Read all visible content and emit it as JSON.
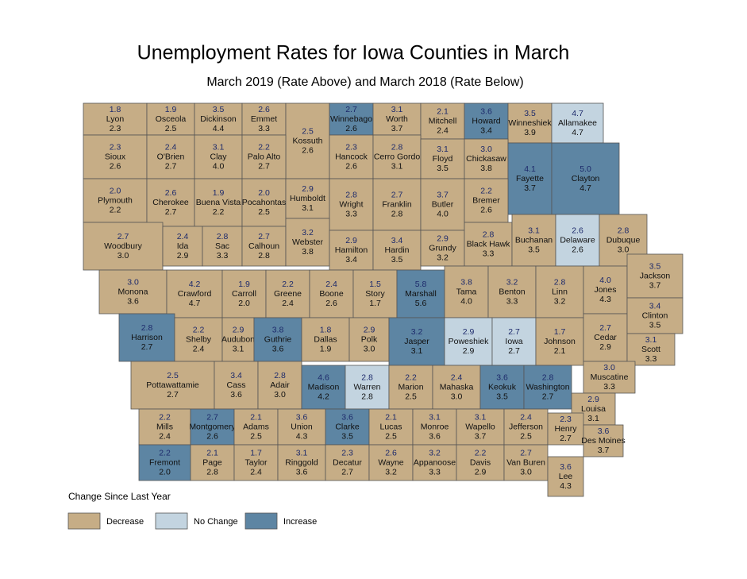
{
  "title": "Unemployment Rates for Iowa Counties in March",
  "subtitle": "March 2019 (Rate Above) and March 2018 (Rate Below)",
  "legend": {
    "title": "Change Since Last Year",
    "items": [
      {
        "label": "Decrease",
        "color": "#c6ad86"
      },
      {
        "label": "No Change",
        "color": "#c3d4e0"
      },
      {
        "label": "Increase",
        "color": "#5d85a3"
      }
    ]
  },
  "counties": [
    {
      "name": "Lyon",
      "rate_2019": "1.8",
      "rate_2018": "2.3",
      "color": "#c6ad86"
    },
    {
      "name": "Osceola",
      "rate_2019": "1.9",
      "rate_2018": "2.5",
      "color": "#c6ad86"
    },
    {
      "name": "Dickinson",
      "rate_2019": "3.5",
      "rate_2018": "4.4",
      "color": "#c6ad86"
    },
    {
      "name": "Emmet",
      "rate_2019": "2.6",
      "rate_2018": "3.3",
      "color": "#c6ad86"
    },
    {
      "name": "Kossuth",
      "rate_2019": "2.5",
      "rate_2018": "2.6",
      "color": "#c6ad86"
    },
    {
      "name": "Winnebago",
      "rate_2019": "2.7",
      "rate_2018": "2.6",
      "color": "#5d85a3"
    },
    {
      "name": "Worth",
      "rate_2019": "3.1",
      "rate_2018": "3.7",
      "color": "#c6ad86"
    },
    {
      "name": "Mitchell",
      "rate_2019": "2.1",
      "rate_2018": "2.4",
      "color": "#c6ad86"
    },
    {
      "name": "Howard",
      "rate_2019": "3.6",
      "rate_2018": "3.4",
      "color": "#5d85a3"
    },
    {
      "name": "Winneshiek",
      "rate_2019": "3.5",
      "rate_2018": "3.9",
      "color": "#c6ad86"
    },
    {
      "name": "Allamakee",
      "rate_2019": "4.7",
      "rate_2018": "4.7",
      "color": "#c3d4e0"
    },
    {
      "name": "Sioux",
      "rate_2019": "2.3",
      "rate_2018": "2.6",
      "color": "#c6ad86"
    },
    {
      "name": "O'Brien",
      "rate_2019": "2.4",
      "rate_2018": "2.7",
      "color": "#c6ad86"
    },
    {
      "name": "Clay",
      "rate_2019": "3.1",
      "rate_2018": "4.0",
      "color": "#c6ad86"
    },
    {
      "name": "Palo Alto",
      "rate_2019": "2.2",
      "rate_2018": "2.7",
      "color": "#c6ad86"
    },
    {
      "name": "Hancock",
      "rate_2019": "2.3",
      "rate_2018": "2.6",
      "color": "#c6ad86"
    },
    {
      "name": "Cerro Gordo",
      "rate_2019": "2.8",
      "rate_2018": "3.1",
      "color": "#c6ad86"
    },
    {
      "name": "Floyd",
      "rate_2019": "3.1",
      "rate_2018": "3.5",
      "color": "#c6ad86"
    },
    {
      "name": "Chickasaw",
      "rate_2019": "3.0",
      "rate_2018": "3.8",
      "color": "#c6ad86"
    },
    {
      "name": "Fayette",
      "rate_2019": "4.1",
      "rate_2018": "3.7",
      "color": "#5d85a3"
    },
    {
      "name": "Clayton",
      "rate_2019": "5.0",
      "rate_2018": "4.7",
      "color": "#5d85a3"
    },
    {
      "name": "Plymouth",
      "rate_2019": "2.0",
      "rate_2018": "2.2",
      "color": "#c6ad86"
    },
    {
      "name": "Cherokee",
      "rate_2019": "2.6",
      "rate_2018": "2.7",
      "color": "#c6ad86"
    },
    {
      "name": "Buena Vista",
      "rate_2019": "1.9",
      "rate_2018": "2.2",
      "color": "#c6ad86"
    },
    {
      "name": "Pocahontas",
      "rate_2019": "2.0",
      "rate_2018": "2.5",
      "color": "#c6ad86"
    },
    {
      "name": "Humboldt",
      "rate_2019": "2.9",
      "rate_2018": "3.1",
      "color": "#c6ad86"
    },
    {
      "name": "Wright",
      "rate_2019": "2.8",
      "rate_2018": "3.3",
      "color": "#c6ad86"
    },
    {
      "name": "Franklin",
      "rate_2019": "2.7",
      "rate_2018": "2.8",
      "color": "#c6ad86"
    },
    {
      "name": "Butler",
      "rate_2019": "3.7",
      "rate_2018": "4.0",
      "color": "#c6ad86"
    },
    {
      "name": "Bremer",
      "rate_2019": "2.2",
      "rate_2018": "2.6",
      "color": "#c6ad86"
    },
    {
      "name": "Woodbury",
      "rate_2019": "2.7",
      "rate_2018": "3.0",
      "color": "#c6ad86"
    },
    {
      "name": "Ida",
      "rate_2019": "2.4",
      "rate_2018": "2.9",
      "color": "#c6ad86"
    },
    {
      "name": "Sac",
      "rate_2019": "2.8",
      "rate_2018": "3.3",
      "color": "#c6ad86"
    },
    {
      "name": "Calhoun",
      "rate_2019": "2.7",
      "rate_2018": "2.8",
      "color": "#c6ad86"
    },
    {
      "name": "Webster",
      "rate_2019": "3.2",
      "rate_2018": "3.8",
      "color": "#c6ad86"
    },
    {
      "name": "Hamilton",
      "rate_2019": "2.9",
      "rate_2018": "3.4",
      "color": "#c6ad86"
    },
    {
      "name": "Hardin",
      "rate_2019": "3.4",
      "rate_2018": "3.5",
      "color": "#c6ad86"
    },
    {
      "name": "Grundy",
      "rate_2019": "2.9",
      "rate_2018": "3.2",
      "color": "#c6ad86"
    },
    {
      "name": "Black Hawk",
      "rate_2019": "2.8",
      "rate_2018": "3.3",
      "color": "#c6ad86"
    },
    {
      "name": "Buchanan",
      "rate_2019": "3.1",
      "rate_2018": "3.5",
      "color": "#c6ad86"
    },
    {
      "name": "Delaware",
      "rate_2019": "2.6",
      "rate_2018": "2.6",
      "color": "#c3d4e0"
    },
    {
      "name": "Dubuque",
      "rate_2019": "2.8",
      "rate_2018": "3.0",
      "color": "#c6ad86"
    },
    {
      "name": "Monona",
      "rate_2019": "3.0",
      "rate_2018": "3.6",
      "color": "#c6ad86"
    },
    {
      "name": "Crawford",
      "rate_2019": "4.2",
      "rate_2018": "4.7",
      "color": "#c6ad86"
    },
    {
      "name": "Carroll",
      "rate_2019": "1.9",
      "rate_2018": "2.0",
      "color": "#c6ad86"
    },
    {
      "name": "Greene",
      "rate_2019": "2.2",
      "rate_2018": "2.4",
      "color": "#c6ad86"
    },
    {
      "name": "Boone",
      "rate_2019": "2.4",
      "rate_2018": "2.6",
      "color": "#c6ad86"
    },
    {
      "name": "Story",
      "rate_2019": "1.5",
      "rate_2018": "1.7",
      "color": "#c6ad86"
    },
    {
      "name": "Marshall",
      "rate_2019": "5.8",
      "rate_2018": "5.6",
      "color": "#5d85a3"
    },
    {
      "name": "Tama",
      "rate_2019": "3.8",
      "rate_2018": "4.0",
      "color": "#c6ad86"
    },
    {
      "name": "Benton",
      "rate_2019": "3.2",
      "rate_2018": "3.3",
      "color": "#c6ad86"
    },
    {
      "name": "Linn",
      "rate_2019": "2.8",
      "rate_2018": "3.2",
      "color": "#c6ad86"
    },
    {
      "name": "Jones",
      "rate_2019": "4.0",
      "rate_2018": "4.3",
      "color": "#c6ad86"
    },
    {
      "name": "Jackson",
      "rate_2019": "3.5",
      "rate_2018": "3.7",
      "color": "#c6ad86"
    },
    {
      "name": "Harrison",
      "rate_2019": "2.8",
      "rate_2018": "2.7",
      "color": "#5d85a3"
    },
    {
      "name": "Shelby",
      "rate_2019": "2.2",
      "rate_2018": "2.4",
      "color": "#c6ad86"
    },
    {
      "name": "Audubon",
      "rate_2019": "2.9",
      "rate_2018": "3.1",
      "color": "#c6ad86"
    },
    {
      "name": "Guthrie",
      "rate_2019": "3.8",
      "rate_2018": "3.6",
      "color": "#5d85a3"
    },
    {
      "name": "Dallas",
      "rate_2019": "1.8",
      "rate_2018": "1.9",
      "color": "#c6ad86"
    },
    {
      "name": "Polk",
      "rate_2019": "2.9",
      "rate_2018": "3.0",
      "color": "#c6ad86"
    },
    {
      "name": "Jasper",
      "rate_2019": "3.2",
      "rate_2018": "3.1",
      "color": "#5d85a3"
    },
    {
      "name": "Poweshiek",
      "rate_2019": "2.9",
      "rate_2018": "2.9",
      "color": "#c3d4e0"
    },
    {
      "name": "Iowa",
      "rate_2019": "2.7",
      "rate_2018": "2.7",
      "color": "#c3d4e0"
    },
    {
      "name": "Johnson",
      "rate_2019": "1.7",
      "rate_2018": "2.1",
      "color": "#c6ad86"
    },
    {
      "name": "Cedar",
      "rate_2019": "2.7",
      "rate_2018": "2.9",
      "color": "#c6ad86"
    },
    {
      "name": "Clinton",
      "rate_2019": "3.4",
      "rate_2018": "3.5",
      "color": "#c6ad86"
    },
    {
      "name": "Scott",
      "rate_2019": "3.1",
      "rate_2018": "3.3",
      "color": "#c6ad86"
    },
    {
      "name": "Pottawattamie",
      "rate_2019": "2.5",
      "rate_2018": "2.7",
      "color": "#c6ad86"
    },
    {
      "name": "Cass",
      "rate_2019": "3.4",
      "rate_2018": "3.6",
      "color": "#c6ad86"
    },
    {
      "name": "Adair",
      "rate_2019": "2.8",
      "rate_2018": "3.0",
      "color": "#c6ad86"
    },
    {
      "name": "Madison",
      "rate_2019": "4.6",
      "rate_2018": "4.2",
      "color": "#5d85a3"
    },
    {
      "name": "Warren",
      "rate_2019": "2.8",
      "rate_2018": "2.8",
      "color": "#c3d4e0"
    },
    {
      "name": "Marion",
      "rate_2019": "2.2",
      "rate_2018": "2.5",
      "color": "#c6ad86"
    },
    {
      "name": "Mahaska",
      "rate_2019": "2.4",
      "rate_2018": "3.0",
      "color": "#c6ad86"
    },
    {
      "name": "Keokuk",
      "rate_2019": "3.6",
      "rate_2018": "3.5",
      "color": "#5d85a3"
    },
    {
      "name": "Washington",
      "rate_2019": "2.8",
      "rate_2018": "2.7",
      "color": "#5d85a3"
    },
    {
      "name": "Muscatine",
      "rate_2019": "3.0",
      "rate_2018": "3.3",
      "color": "#c6ad86"
    },
    {
      "name": "Louisa",
      "rate_2019": "2.9",
      "rate_2018": "3.1",
      "color": "#c6ad86"
    },
    {
      "name": "Mills",
      "rate_2019": "2.2",
      "rate_2018": "2.4",
      "color": "#c6ad86"
    },
    {
      "name": "Montgomery",
      "rate_2019": "2.7",
      "rate_2018": "2.6",
      "color": "#5d85a3"
    },
    {
      "name": "Adams",
      "rate_2019": "2.1",
      "rate_2018": "2.5",
      "color": "#c6ad86"
    },
    {
      "name": "Union",
      "rate_2019": "3.6",
      "rate_2018": "4.3",
      "color": "#c6ad86"
    },
    {
      "name": "Clarke",
      "rate_2019": "3.6",
      "rate_2018": "3.5",
      "color": "#5d85a3"
    },
    {
      "name": "Lucas",
      "rate_2019": "2.1",
      "rate_2018": "2.5",
      "color": "#c6ad86"
    },
    {
      "name": "Monroe",
      "rate_2019": "3.1",
      "rate_2018": "3.6",
      "color": "#c6ad86"
    },
    {
      "name": "Wapello",
      "rate_2019": "3.1",
      "rate_2018": "3.7",
      "color": "#c6ad86"
    },
    {
      "name": "Jefferson",
      "rate_2019": "2.4",
      "rate_2018": "2.5",
      "color": "#c6ad86"
    },
    {
      "name": "Henry",
      "rate_2019": "2.3",
      "rate_2018": "2.7",
      "color": "#c6ad86"
    },
    {
      "name": "Des Moines",
      "rate_2019": "3.6",
      "rate_2018": "3.7",
      "color": "#c6ad86"
    },
    {
      "name": "Fremont",
      "rate_2019": "2.2",
      "rate_2018": "2.0",
      "color": "#5d85a3"
    },
    {
      "name": "Page",
      "rate_2019": "2.1",
      "rate_2018": "2.8",
      "color": "#c6ad86"
    },
    {
      "name": "Taylor",
      "rate_2019": "1.7",
      "rate_2018": "2.4",
      "color": "#c6ad86"
    },
    {
      "name": "Ringgold",
      "rate_2019": "3.1",
      "rate_2018": "3.6",
      "color": "#c6ad86"
    },
    {
      "name": "Decatur",
      "rate_2019": "2.3",
      "rate_2018": "2.7",
      "color": "#c6ad86"
    },
    {
      "name": "Wayne",
      "rate_2019": "2.6",
      "rate_2018": "3.2",
      "color": "#c6ad86"
    },
    {
      "name": "Appanoose",
      "rate_2019": "3.2",
      "rate_2018": "3.3",
      "color": "#c6ad86"
    },
    {
      "name": "Davis",
      "rate_2019": "2.2",
      "rate_2018": "2.9",
      "color": "#c6ad86"
    },
    {
      "name": "Van Buren",
      "rate_2019": "2.7",
      "rate_2018": "3.0",
      "color": "#c6ad86"
    },
    {
      "name": "Lee",
      "rate_2019": "3.6",
      "rate_2018": "4.3",
      "color": "#c6ad86"
    }
  ]
}
